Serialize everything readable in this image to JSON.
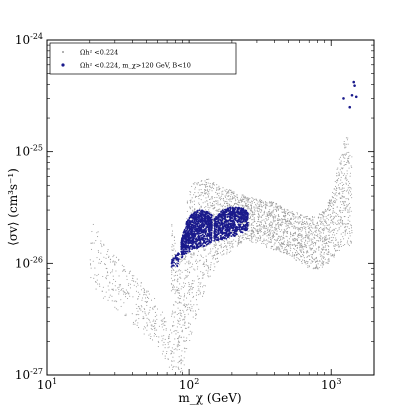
{
  "chart_data": {
    "type": "scatter",
    "title": "",
    "xlabel": "m_χ (GeV)",
    "ylabel": "⟨σv⟩ (cm³s⁻¹)",
    "xscale": "log",
    "yscale": "log",
    "xlim": [
      10,
      2000
    ],
    "ylim": [
      1e-27,
      1e-24
    ],
    "x_ticks": [
      {
        "value": 10,
        "base": "10",
        "exp": "1"
      },
      {
        "value": 100,
        "base": "10",
        "exp": "2"
      },
      {
        "value": 1000,
        "base": "10",
        "exp": "3"
      }
    ],
    "y_ticks": [
      {
        "value": 1e-27,
        "base": "10",
        "exp": "-27"
      },
      {
        "value": 1e-26,
        "base": "10",
        "exp": "-26"
      },
      {
        "value": 1e-25,
        "base": "10",
        "exp": "-25"
      },
      {
        "value": 1e-24,
        "base": "10",
        "exp": "-24"
      }
    ],
    "legend_position": "top-left",
    "series": [
      {
        "name": "Ωh² <0.224",
        "color": "#9a9a9a",
        "envelope_segments": [
          {
            "x": [
              20,
              30,
              45,
              60,
              70,
              75
            ],
            "lo": [
              6e-27,
              4e-27,
              2.5e-27,
              1.8e-27,
              1.3e-27,
              1e-27
            ],
            "hi": [
              2.5e-26,
              1.2e-26,
              7e-27,
              4.5e-27,
              3e-27,
              2.5e-27
            ]
          },
          {
            "x": [
              75,
              80,
              85,
              90,
              95
            ],
            "lo": [
              1e-27,
              1e-27,
              1e-27,
              1.1e-27,
              1.3e-27
            ],
            "hi": [
              3e-26,
              1.6e-26,
              1.2e-26,
              1.4e-26,
              2e-26
            ]
          },
          {
            "x": [
              95,
              110,
              130,
              160,
              200,
              250,
              300,
              400,
              500,
              600,
              700,
              800,
              900,
              1000,
              1100,
              1200,
              1300,
              1400
            ],
            "lo": [
              1.5e-27,
              3e-27,
              6e-27,
              1e-26,
              1.3e-26,
              1.6e-26,
              1.5e-26,
              1.3e-26,
              1.2e-26,
              1e-26,
              9e-27,
              8.5e-27,
              9e-27,
              1e-26,
              1.2e-26,
              1.4e-26,
              1.5e-26,
              1.3e-26
            ],
            "hi": [
              4e-26,
              5.5e-26,
              6e-26,
              5e-26,
              4.5e-26,
              4e-26,
              3.8e-26,
              3.5e-26,
              3e-26,
              2.8e-26,
              2.6e-26,
              2.7e-26,
              3e-26,
              4e-26,
              7e-26,
              1.2e-25,
              1.4e-25,
              1e-25
            ]
          }
        ]
      },
      {
        "name": "Ωh² <0.224, m_χ>120 GeV, B<10",
        "color": "#1a1a8c",
        "envelope_segments": [
          {
            "x": [
              75,
              80,
              85
            ],
            "lo": [
              9e-27,
              8.5e-27,
              9.5e-27
            ],
            "hi": [
              1.1e-26,
              1.2e-26,
              1.3e-26
            ]
          },
          {
            "x": [
              88,
              95,
              105,
              115,
              125,
              135,
              145
            ],
            "lo": [
              1.1e-26,
              1.2e-26,
              1.3e-26,
              1.35e-26,
              1.4e-26,
              1.45e-26,
              1.5e-26
            ],
            "hi": [
              1.6e-26,
              2.3e-26,
              2.8e-26,
              3e-26,
              3e-26,
              2.9e-26,
              2.7e-26
            ]
          },
          {
            "x": [
              150,
              165,
              180,
              200,
              220,
              240,
              260
            ],
            "lo": [
              1.55e-26,
              1.6e-26,
              1.65e-26,
              1.7e-26,
              1.8e-26,
              1.9e-26,
              2e-26
            ],
            "hi": [
              2.5e-26,
              2.9e-26,
              3.1e-26,
              3.2e-26,
              3.2e-26,
              3.1e-26,
              2.9e-26
            ]
          }
        ],
        "isolated_points": [
          {
            "x": 1220,
            "y": 3e-25
          },
          {
            "x": 1350,
            "y": 2.5e-25
          },
          {
            "x": 1400,
            "y": 3.2e-25
          },
          {
            "x": 1460,
            "y": 3.9e-25
          },
          {
            "x": 1500,
            "y": 3.1e-25
          },
          {
            "x": 1440,
            "y": 4.2e-25
          }
        ]
      }
    ]
  }
}
